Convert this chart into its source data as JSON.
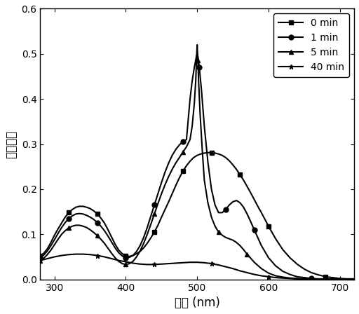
{
  "title": "",
  "xlabel": "波长 (nm)",
  "ylabel": "吸收强度",
  "xlim": [
    280,
    720
  ],
  "ylim": [
    0.0,
    0.6
  ],
  "xticks": [
    300,
    400,
    500,
    600,
    700
  ],
  "yticks": [
    0.0,
    0.1,
    0.2,
    0.3,
    0.4,
    0.5,
    0.6
  ],
  "legend_labels": [
    "0 min",
    "1 min",
    "5 min",
    "40 min"
  ],
  "markers": [
    "s",
    "o",
    "^",
    "*"
  ],
  "colors": [
    "black",
    "black",
    "black",
    "black"
  ],
  "series": {
    "0min": {
      "x": [
        280,
        285,
        290,
        295,
        300,
        305,
        310,
        315,
        320,
        325,
        330,
        335,
        340,
        345,
        350,
        355,
        360,
        365,
        370,
        375,
        380,
        385,
        390,
        395,
        400,
        405,
        410,
        415,
        420,
        425,
        430,
        435,
        440,
        445,
        450,
        455,
        460,
        465,
        470,
        475,
        480,
        485,
        490,
        495,
        500,
        505,
        510,
        515,
        520,
        525,
        530,
        535,
        540,
        545,
        550,
        555,
        560,
        565,
        570,
        575,
        580,
        585,
        590,
        595,
        600,
        610,
        620,
        630,
        640,
        650,
        660,
        670,
        680,
        690,
        700,
        710,
        720
      ],
      "y": [
        0.052,
        0.058,
        0.068,
        0.082,
        0.098,
        0.112,
        0.125,
        0.138,
        0.148,
        0.155,
        0.16,
        0.162,
        0.162,
        0.16,
        0.157,
        0.152,
        0.145,
        0.136,
        0.125,
        0.11,
        0.094,
        0.078,
        0.065,
        0.057,
        0.052,
        0.051,
        0.053,
        0.057,
        0.062,
        0.07,
        0.08,
        0.092,
        0.105,
        0.12,
        0.138,
        0.155,
        0.172,
        0.19,
        0.208,
        0.225,
        0.24,
        0.252,
        0.262,
        0.27,
        0.275,
        0.278,
        0.28,
        0.281,
        0.281,
        0.28,
        0.278,
        0.275,
        0.27,
        0.263,
        0.254,
        0.244,
        0.232,
        0.22,
        0.206,
        0.192,
        0.177,
        0.162,
        0.148,
        0.133,
        0.118,
        0.09,
        0.066,
        0.048,
        0.034,
        0.023,
        0.015,
        0.01,
        0.006,
        0.004,
        0.002,
        0.001,
        0.001
      ]
    },
    "1min": {
      "x": [
        280,
        285,
        290,
        295,
        300,
        305,
        310,
        315,
        320,
        325,
        330,
        335,
        340,
        345,
        350,
        355,
        360,
        365,
        370,
        375,
        380,
        385,
        390,
        395,
        400,
        405,
        410,
        415,
        420,
        425,
        430,
        435,
        440,
        445,
        450,
        455,
        460,
        465,
        470,
        475,
        480,
        485,
        490,
        493,
        496,
        499,
        500,
        501,
        503,
        506,
        510,
        515,
        520,
        525,
        530,
        535,
        540,
        545,
        550,
        555,
        560,
        565,
        570,
        575,
        580,
        590,
        600,
        610,
        620,
        630,
        640,
        650,
        660,
        670,
        680,
        690,
        700,
        710,
        720
      ],
      "y": [
        0.048,
        0.054,
        0.063,
        0.075,
        0.088,
        0.102,
        0.115,
        0.126,
        0.135,
        0.141,
        0.145,
        0.146,
        0.145,
        0.142,
        0.138,
        0.133,
        0.126,
        0.118,
        0.108,
        0.096,
        0.083,
        0.07,
        0.059,
        0.052,
        0.048,
        0.049,
        0.053,
        0.062,
        0.075,
        0.093,
        0.115,
        0.14,
        0.165,
        0.19,
        0.215,
        0.238,
        0.258,
        0.275,
        0.288,
        0.298,
        0.305,
        0.31,
        0.4,
        0.44,
        0.47,
        0.495,
        0.5,
        0.495,
        0.47,
        0.42,
        0.34,
        0.26,
        0.2,
        0.165,
        0.148,
        0.148,
        0.155,
        0.165,
        0.172,
        0.175,
        0.17,
        0.16,
        0.145,
        0.128,
        0.11,
        0.075,
        0.048,
        0.03,
        0.018,
        0.011,
        0.006,
        0.004,
        0.002,
        0.001,
        0.001,
        0.001,
        0.001,
        0.001,
        0.001
      ]
    },
    "5min": {
      "x": [
        280,
        285,
        290,
        295,
        300,
        305,
        310,
        315,
        320,
        325,
        330,
        335,
        340,
        345,
        350,
        355,
        360,
        365,
        370,
        375,
        380,
        385,
        390,
        395,
        400,
        405,
        410,
        415,
        420,
        425,
        430,
        435,
        440,
        445,
        450,
        455,
        460,
        465,
        470,
        475,
        480,
        485,
        490,
        493,
        496,
        498,
        499,
        500,
        501,
        502,
        504,
        507,
        510,
        515,
        520,
        525,
        530,
        535,
        540,
        545,
        550,
        555,
        560,
        565,
        570,
        580,
        590,
        600,
        610,
        620,
        630,
        640,
        650,
        660,
        670,
        680,
        690,
        700,
        710,
        720
      ],
      "y": [
        0.042,
        0.047,
        0.055,
        0.065,
        0.077,
        0.089,
        0.1,
        0.108,
        0.114,
        0.118,
        0.12,
        0.12,
        0.118,
        0.115,
        0.11,
        0.104,
        0.097,
        0.089,
        0.08,
        0.069,
        0.058,
        0.048,
        0.04,
        0.035,
        0.033,
        0.035,
        0.04,
        0.05,
        0.063,
        0.08,
        0.1,
        0.122,
        0.145,
        0.168,
        0.19,
        0.21,
        0.228,
        0.244,
        0.258,
        0.27,
        0.282,
        0.294,
        0.31,
        0.34,
        0.39,
        0.44,
        0.485,
        0.52,
        0.485,
        0.44,
        0.37,
        0.29,
        0.22,
        0.17,
        0.138,
        0.118,
        0.105,
        0.098,
        0.093,
        0.09,
        0.087,
        0.082,
        0.075,
        0.066,
        0.056,
        0.038,
        0.024,
        0.014,
        0.008,
        0.005,
        0.003,
        0.002,
        0.001,
        0.001,
        0.001,
        0.001,
        0.001,
        0.001,
        0.001,
        0.001
      ]
    },
    "40min": {
      "x": [
        280,
        290,
        300,
        310,
        320,
        330,
        340,
        350,
        360,
        370,
        380,
        390,
        400,
        410,
        420,
        430,
        440,
        450,
        460,
        470,
        480,
        490,
        500,
        510,
        520,
        530,
        540,
        550,
        560,
        570,
        580,
        590,
        600,
        610,
        620,
        630,
        640,
        650,
        660,
        670,
        680,
        690,
        700,
        710,
        720
      ],
      "y": [
        0.042,
        0.046,
        0.05,
        0.053,
        0.055,
        0.056,
        0.056,
        0.055,
        0.053,
        0.05,
        0.046,
        0.042,
        0.039,
        0.036,
        0.034,
        0.033,
        0.033,
        0.034,
        0.035,
        0.036,
        0.037,
        0.038,
        0.038,
        0.037,
        0.035,
        0.032,
        0.028,
        0.024,
        0.019,
        0.015,
        0.011,
        0.008,
        0.006,
        0.004,
        0.003,
        0.002,
        0.001,
        0.001,
        0.001,
        0.001,
        0.001,
        0.001,
        0.001,
        0.001,
        0.001
      ]
    }
  },
  "marker_interval": 8,
  "linewidth": 1.5,
  "markersize": 5,
  "background_color": "#ffffff",
  "legend_fontsize": 10,
  "axis_fontsize": 12,
  "tick_fontsize": 10
}
